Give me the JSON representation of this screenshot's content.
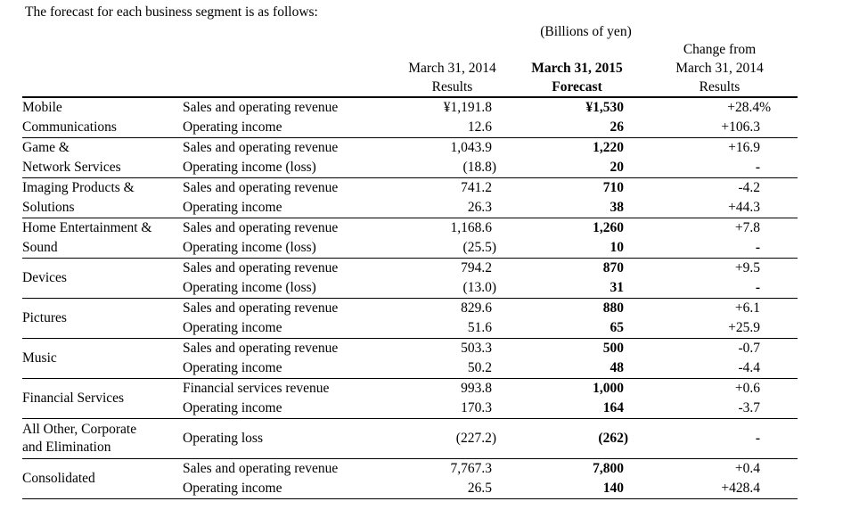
{
  "title": "The forecast for each business segment is as follows:",
  "unit_note": "(Billions of yen)",
  "columns": {
    "results_2014": [
      "March 31, 2014",
      "Results"
    ],
    "forecast_2015": [
      "March 31, 2015",
      "Forecast"
    ],
    "change": [
      "Change from",
      "March 31, 2014",
      "Results"
    ]
  },
  "table": {
    "groups": [
      {
        "segment": [
          "Mobile",
          "Communications"
        ],
        "label_mode": "per-row",
        "rows": [
          {
            "item": "Sales and operating revenue",
            "results": "¥1,191.8",
            "forecast": "¥1,530",
            "change": "+28.4%"
          },
          {
            "item": "Operating income",
            "results": "12.6",
            "forecast": "26",
            "change": "+106.3"
          }
        ]
      },
      {
        "segment": [
          "Game &",
          "Network Services"
        ],
        "label_mode": "per-row",
        "rows": [
          {
            "item": "Sales and operating revenue",
            "results": "1,043.9",
            "forecast": "1,220",
            "change": "+16.9"
          },
          {
            "item": "Operating income (loss)",
            "results": "(18.8)",
            "forecast": "20",
            "change": "-"
          }
        ]
      },
      {
        "segment": [
          "Imaging Products &",
          "Solutions"
        ],
        "label_mode": "per-row",
        "rows": [
          {
            "item": "Sales and operating revenue",
            "results": "741.2",
            "forecast": "710",
            "change": "-4.2"
          },
          {
            "item": "Operating income",
            "results": "26.3",
            "forecast": "38",
            "change": "+44.3"
          }
        ]
      },
      {
        "segment": [
          "Home Entertainment &",
          "Sound"
        ],
        "label_mode": "per-row",
        "rows": [
          {
            "item": "Sales and operating revenue",
            "results": "1,168.6",
            "forecast": "1,260",
            "change": "+7.8"
          },
          {
            "item": "Operating income (loss)",
            "results": "(25.5)",
            "forecast": "10",
            "change": "-"
          }
        ]
      },
      {
        "segment": [
          "Devices"
        ],
        "label_mode": "centered",
        "rows": [
          {
            "item": "Sales and operating revenue",
            "results": "794.2",
            "forecast": "870",
            "change": "+9.5"
          },
          {
            "item": "Operating income (loss)",
            "results": "(13.0)",
            "forecast": "31",
            "change": "-"
          }
        ]
      },
      {
        "segment": [
          "Pictures"
        ],
        "label_mode": "centered",
        "rows": [
          {
            "item": "Sales and operating revenue",
            "results": "829.6",
            "forecast": "880",
            "change": "+6.1"
          },
          {
            "item": "Operating income",
            "results": "51.6",
            "forecast": "65",
            "change": "+25.9"
          }
        ]
      },
      {
        "segment": [
          "Music"
        ],
        "label_mode": "centered",
        "rows": [
          {
            "item": "Sales and operating revenue",
            "results": "503.3",
            "forecast": "500",
            "change": "-0.7"
          },
          {
            "item": "Operating income",
            "results": "50.2",
            "forecast": "48",
            "change": "-4.4"
          }
        ]
      },
      {
        "segment": [
          "Financial Services"
        ],
        "label_mode": "centered",
        "rows": [
          {
            "item": "Financial services revenue",
            "results": "993.8",
            "forecast": "1,000",
            "change": "+0.6"
          },
          {
            "item": "Operating income",
            "results": "170.3",
            "forecast": "164",
            "change": "-3.7"
          }
        ]
      },
      {
        "segment": [
          "All Other, Corporate",
          "and Elimination"
        ],
        "label_mode": "centered",
        "rows": [
          {
            "item": "Operating loss",
            "results": "(227.2)",
            "forecast": "(262)",
            "change": "-"
          }
        ]
      },
      {
        "segment": [
          "Consolidated"
        ],
        "label_mode": "centered",
        "rows": [
          {
            "item": "Sales and operating revenue",
            "results": "7,767.3",
            "forecast": "7,800",
            "change": "+0.4"
          },
          {
            "item": "Operating income",
            "results": "26.5",
            "forecast": "140",
            "change": "+428.4"
          }
        ]
      }
    ]
  }
}
